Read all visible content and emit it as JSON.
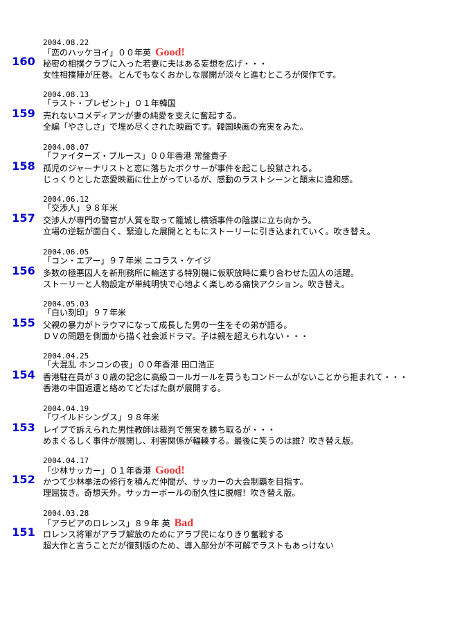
{
  "entries": [
    {
      "number": "160",
      "date": "2004.08.22",
      "title": "「恋のハッケヨイ」００年英",
      "rating": "Good!",
      "lines": [
        "秘密の相撲クラブに入った若妻に夫はある妄想を広げ・・・",
        "女性相撲陣が圧巻。とんでもなくおかしな展開が淡々と進むところが傑作です。"
      ]
    },
    {
      "number": "159",
      "date": "2004.08.13",
      "title": "「ラスト・プレゼント」０１年韓国",
      "lines": [
        "売れないコメディアンが妻の純愛を支えに奮起する。",
        "全編「やさしさ」で埋め尽くされた映画です。韓国映画の充実をみた。"
      ]
    },
    {
      "number": "158",
      "date": "2004.08.07",
      "title": "「ファイターズ・ブルース」００年香港 常盤貴子",
      "lines": [
        "孤児のジャーナリストと恋に落ちたボクサーが事件を起こし投獄される。",
        "じっくりとした恋愛映画に仕上がっているが、感動のラストシーンと顛末に違和感。"
      ]
    },
    {
      "number": "157",
      "date": "2004.06.12",
      "title": "「交渉人」９８年米",
      "lines": [
        "交渉人が専門の警官が人質を取って籠城し横領事件の陰謀に立ち向かう。",
        "立場の逆転が面白く、緊迫した展開とともにストーリーに引き込まれていく。吹き替え。"
      ]
    },
    {
      "number": "156",
      "date": "2004.06.05",
      "title": "「コン・エアー」９７年米 ニコラス・ケイジ",
      "lines": [
        "多数の極悪囚人を新刑務所に輸送する特別機に仮釈放時に乗り合わせた囚人の活躍。",
        "ストーリーと人物設定が単純明快で心地よく楽しめる痛快アクション。吹き替え。"
      ]
    },
    {
      "number": "155",
      "date": "2004.05.03",
      "title": "「白い刻印」９７年米",
      "lines": [
        "父親の暴力がトラウマになって成長した男の一生をその弟が語る。",
        "ＤＶの問題を側面から描く社会派ドラマ。子は親を超えられない・・・"
      ]
    },
    {
      "number": "154",
      "date": "2004.04.25",
      "title": "「大混乱 ホンコンの夜」００年香港 田口浩正",
      "lines": [
        "香港駐在員が３０歳の記念に高級コールガールを買うもコンドームがないことから拒まれて・・・",
        "香港の中国返還と絡めてどたばた劇が展開する。"
      ]
    },
    {
      "number": "153",
      "date": "2004.04.19",
      "title": "「ワイルドシングス」９８年米",
      "lines": [
        "レイプで訴えられた男性教師は裁判で無実を勝ち取るが・・・",
        "めまぐるしく事件が展開し、利害関係が輻輳する。最後に笑うのは誰？吹き替え版。"
      ]
    },
    {
      "number": "152",
      "date": "2004.04.17",
      "title": "「少林サッカー」０１年香港",
      "rating": "Good!",
      "lines": [
        "かつて少林拳法の修行を積んだ仲間が、サッカーの大会制覇を目指す。",
        "理屈抜き。奇想天外。サッカーボールの耐久性に脱帽！吹き替え版。"
      ]
    },
    {
      "number": "151",
      "date": "2004.03.28",
      "title": "「アラビアのロレンス」８９年 英",
      "rating": "Bad",
      "lines": [
        "ロレンス将軍がアラブ解放のためにアラブ民になりきり奮戦する",
        "超大作と言うことだが復刻版のため、導入部分が不可解でラストもあっけない"
      ]
    }
  ]
}
